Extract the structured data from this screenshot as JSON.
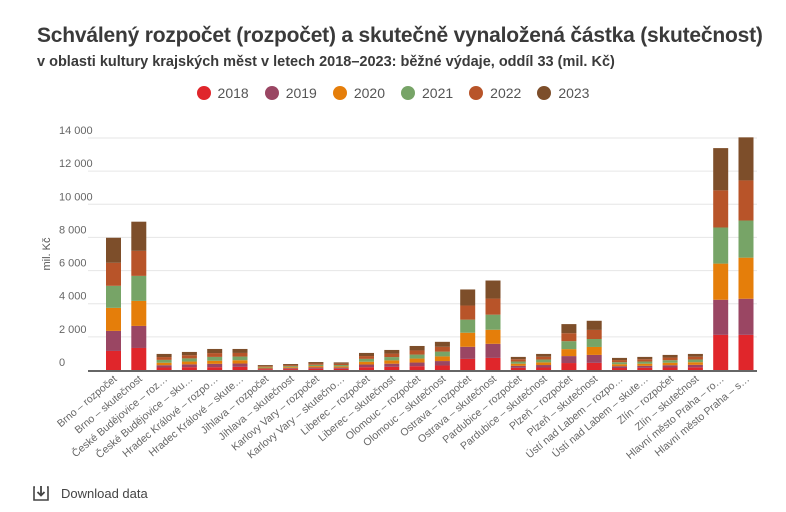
{
  "header": {
    "title": "Schválený rozpočet (rozpočet) a skutečně vynaložená částka (skutečnost)",
    "subtitle": "v oblasti kultury krajských měst v letech 2018–2023: běžné výdaje, oddíl 33 (mil. Kč)"
  },
  "footer": {
    "download_label": "Download data",
    "download_icon": "download-icon"
  },
  "chart_data": {
    "type": "bar",
    "stacked": true,
    "title": "Schválený rozpočet (rozpočet) a skutečně vynaložená částka (skutečnost)",
    "subtitle": "v oblasti kultury krajských měst v letech 2018–2023: běžné výdaje, oddíl 33 (mil. Kč)",
    "xlabel": "",
    "ylabel": "mil. Kč",
    "ylim": [
      0,
      14000
    ],
    "yticks": [
      0,
      2000,
      4000,
      6000,
      8000,
      10000,
      12000,
      14000
    ],
    "ytick_labels": [
      "0",
      "2 000",
      "4 000",
      "6 000",
      "8 000",
      "10 000",
      "12 000",
      "14 000"
    ],
    "grid": true,
    "legend_position": "top-center",
    "categories": [
      "Brno – rozpočet",
      "Brno – skutečnost",
      "České Budějovice – roz…",
      "České Budějovice – sku…",
      "Hradec Králové – rozpo…",
      "Hradec Králové – skute…",
      "Jihlava – rozpočet",
      "Jihlava – skutečnost",
      "Karlovy Vary – rozpočet",
      "Karlovy Vary – skutečno…",
      "Liberec – rozpočet",
      "Liberec – skutečnost",
      "Olomouc – rozpočet",
      "Olomouc – skutečnost",
      "Ostrava – rozpočet",
      "Ostrava – skutečnost",
      "Pardubice – rozpočet",
      "Pardubice – skutečnost",
      "Plzeň – rozpočet",
      "Plzeň – skutečnost",
      "Ústí nad Labem – rozpo…",
      "Ústí nad Labem – skute…",
      "Zlín – rozpočet",
      "Zlín – skutečnost",
      "Hlavní město Praha – ro…",
      "Hlavní město Praha – s…"
    ],
    "series": [
      {
        "name": "2018",
        "color": "#E0262B",
        "values": [
          1150,
          1330,
          150,
          170,
          170,
          190,
          50,
          55,
          80,
          75,
          170,
          190,
          230,
          270,
          670,
          730,
          130,
          150,
          420,
          430,
          120,
          130,
          150,
          160,
          2120,
          2120
        ]
      },
      {
        "name": "2019",
        "color": "#9A4663",
        "values": [
          1210,
          1330,
          140,
          170,
          200,
          200,
          45,
          55,
          75,
          70,
          160,
          190,
          220,
          270,
          730,
          850,
          120,
          150,
          420,
          480,
          110,
          120,
          140,
          150,
          2120,
          2180
        ]
      },
      {
        "name": "2020",
        "color": "#E57E0A",
        "values": [
          1390,
          1510,
          150,
          170,
          190,
          200,
          50,
          60,
          80,
          75,
          170,
          200,
          240,
          280,
          850,
          850,
          130,
          160,
          420,
          480,
          120,
          130,
          150,
          160,
          2180,
          2480
        ]
      },
      {
        "name": "2021",
        "color": "#77A467",
        "values": [
          1330,
          1510,
          170,
          190,
          230,
          220,
          50,
          60,
          80,
          80,
          170,
          200,
          240,
          290,
          790,
          910,
          130,
          170,
          480,
          480,
          120,
          130,
          150,
          160,
          2180,
          2240
        ]
      },
      {
        "name": "2022",
        "color": "#B85429",
        "values": [
          1390,
          1510,
          170,
          190,
          230,
          220,
          50,
          65,
          80,
          80,
          170,
          210,
          250,
          290,
          850,
          970,
          140,
          170,
          480,
          550,
          130,
          140,
          160,
          170,
          2240,
          2420
        ]
      },
      {
        "name": "2023",
        "color": "#7D4E2A",
        "values": [
          1510,
          1760,
          190,
          200,
          250,
          240,
          55,
          65,
          85,
          80,
          190,
          220,
          270,
          300,
          970,
          1090,
          140,
          170,
          550,
          550,
          130,
          140,
          160,
          170,
          2550,
          2600
        ]
      }
    ]
  }
}
